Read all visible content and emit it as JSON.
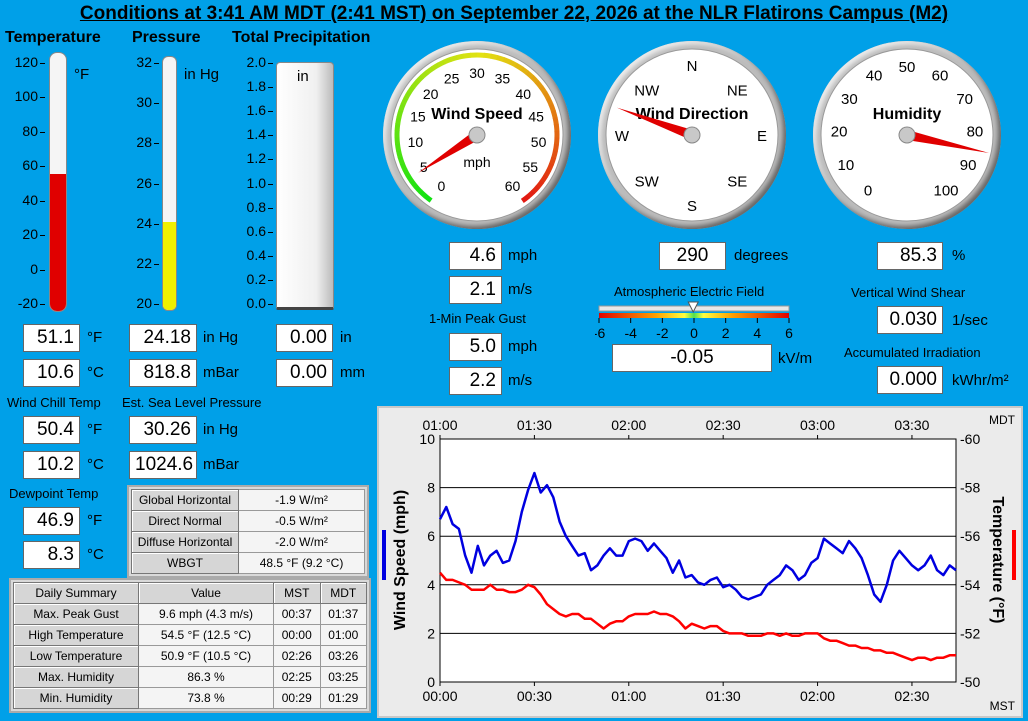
{
  "title": "Conditions at 3:41 AM MDT (2:41 MST) on September 22, 2026 at the NLR Flatirons Campus (M2)",
  "temperature": {
    "header": "Temperature",
    "scale_unit": "°F",
    "ticks": [
      "120",
      "100",
      "80",
      "60",
      "40",
      "20",
      "0",
      "-20"
    ],
    "level": 51.1,
    "min": -20,
    "max": 120,
    "value_f": "51.1",
    "unit_f": "°F",
    "value_c": "10.6",
    "unit_c": "°C"
  },
  "pressure": {
    "header": "Pressure",
    "scale_unit": "in Hg",
    "ticks": [
      "32",
      "30",
      "28",
      "26",
      "24",
      "22",
      "20"
    ],
    "level": 24.18,
    "min": 20,
    "max": 32,
    "value_inhg": "24.18",
    "unit_inhg": "in Hg",
    "value_mbar": "818.8",
    "unit_mbar": "mBar"
  },
  "precip": {
    "header": "Total Precipitation",
    "scale_unit": "in",
    "ticks": [
      "2.0",
      "1.8",
      "1.6",
      "1.4",
      "1.2",
      "1.0",
      "0.8",
      "0.6",
      "0.4",
      "0.2",
      "0.0"
    ],
    "level": 0.0,
    "value_in": "0.00",
    "unit_in": "in",
    "value_mm": "0.00",
    "unit_mm": "mm"
  },
  "wind_chill": {
    "label": "Wind Chill Temp",
    "value_f": "50.4",
    "unit_f": "°F",
    "value_c": "10.2",
    "unit_c": "°C"
  },
  "sea_level": {
    "label": "Est. Sea Level Pressure",
    "value_inhg": "30.26",
    "unit_inhg": "in Hg",
    "value_mbar": "1024.6",
    "unit_mbar": "mBar"
  },
  "dewpoint": {
    "label": "Dewpoint Temp",
    "value_f": "46.9",
    "unit_f": "°F",
    "value_c": "8.3",
    "unit_c": "°C"
  },
  "radiation": [
    {
      "label": "Global Horizontal",
      "value": "-1.9 W/m²"
    },
    {
      "label": "Direct Normal",
      "value": "-0.5 W/m²"
    },
    {
      "label": "Diffuse Horizontal",
      "value": "-2.0 W/m²"
    },
    {
      "label": "WBGT",
      "value": "48.5 °F (9.2 °C)"
    }
  ],
  "daily_summary": {
    "headers": [
      "Daily Summary",
      "Value",
      "MST",
      "MDT"
    ],
    "rows": [
      {
        "label": "Max. Peak Gust",
        "value": "9.6 mph (4.3 m/s)",
        "mst": "00:37",
        "mdt": "01:37"
      },
      {
        "label": "High Temperature",
        "value": "54.5 °F (12.5 °C)",
        "mst": "00:00",
        "mdt": "01:00"
      },
      {
        "label": "Low Temperature",
        "value": "50.9 °F (10.5 °C)",
        "mst": "02:26",
        "mdt": "03:26"
      },
      {
        "label": "Max. Humidity",
        "value": "86.3 %",
        "mst": "02:25",
        "mdt": "03:25"
      },
      {
        "label": "Min. Humidity",
        "value": "73.8 %",
        "mst": "00:29",
        "mdt": "01:29"
      }
    ]
  },
  "wind_speed": {
    "gauge_title": "Wind Speed",
    "gauge_unit": "mph",
    "gauge_labels": [
      "0",
      "5",
      "10",
      "15",
      "20",
      "25",
      "30",
      "35",
      "40",
      "45",
      "50",
      "55",
      "60"
    ],
    "needle_value": 4.6,
    "gauge_max": 60,
    "value_mph": "4.6",
    "unit_mph": "mph",
    "value_ms": "2.1",
    "unit_ms": "m/s",
    "peak_label": "1-Min Peak Gust",
    "peak_mph": "5.0",
    "peak_unit_mph": "mph",
    "peak_ms": "2.2",
    "peak_unit_ms": "m/s"
  },
  "wind_direction": {
    "gauge_title": "Wind Direction",
    "compass": [
      "N",
      "NE",
      "E",
      "SE",
      "S",
      "SW",
      "W",
      "NW"
    ],
    "needle_degrees": 290,
    "value": "290",
    "unit": "degrees"
  },
  "humidity": {
    "gauge_title": "Humidity",
    "gauge_labels": [
      "0",
      "10",
      "20",
      "30",
      "40",
      "50",
      "60",
      "70",
      "80",
      "90",
      "100"
    ],
    "needle_value": 85.3,
    "value": "85.3",
    "unit": "%"
  },
  "electric_field": {
    "label": "Atmospheric Electric Field",
    "ticks": [
      "-6",
      "-4",
      "-2",
      "0",
      "2",
      "4",
      "6"
    ],
    "indicator": -0.05,
    "value": "-0.05",
    "unit": "kV/m"
  },
  "wind_shear": {
    "label": "Vertical Wind Shear",
    "value": "0.030",
    "unit": "1/sec"
  },
  "irradiation": {
    "label": "Accumulated Irradiation",
    "value": "0.000",
    "unit": "kWhr/m²"
  },
  "colors": {
    "wind": "#0000e0",
    "temp": "#ff0000",
    "thermo_fill": "#e00000",
    "pressure_fill": "#f0f000",
    "background": "#00a0e8"
  },
  "chart_data": {
    "type": "line",
    "xlabel_top": "MDT",
    "xlabel_bottom": "MST",
    "x_top_ticks": [
      "01:00",
      "01:30",
      "02:00",
      "02:30",
      "03:00",
      "03:30"
    ],
    "x_bottom_ticks": [
      "00:00",
      "00:30",
      "01:00",
      "01:30",
      "02:00",
      "02:30"
    ],
    "x_range_minutes_mst": [
      0,
      164
    ],
    "y_left": {
      "label": "Wind Speed (mph)",
      "range": [
        0,
        10
      ],
      "ticks": [
        "10",
        "8",
        "6",
        "4",
        "2",
        "0"
      ]
    },
    "y_right": {
      "label": "Temperature (°F)",
      "range": [
        -50,
        -60
      ],
      "ticks": [
        "-60",
        "-58",
        "-56",
        "-54",
        "-52",
        "-50"
      ]
    },
    "grid": true,
    "series": [
      {
        "name": "Wind Speed (mph)",
        "axis": "left",
        "color": "#0000e0",
        "x": [
          0,
          2,
          4,
          6,
          8,
          10,
          12,
          14,
          16,
          18,
          20,
          22,
          24,
          26,
          28,
          30,
          32,
          34,
          36,
          38,
          40,
          42,
          44,
          46,
          48,
          50,
          52,
          54,
          56,
          58,
          60,
          62,
          64,
          66,
          68,
          70,
          72,
          74,
          76,
          78,
          80,
          82,
          84,
          86,
          88,
          90,
          92,
          94,
          96,
          98,
          100,
          102,
          104,
          106,
          108,
          110,
          112,
          114,
          116,
          118,
          120,
          122,
          124,
          126,
          128,
          130,
          132,
          134,
          136,
          138,
          140,
          142,
          144,
          146,
          148,
          150,
          152,
          154,
          156,
          158,
          160,
          162,
          164
        ],
        "y": [
          6.7,
          7.2,
          6.5,
          6.3,
          5.2,
          4.5,
          5.6,
          4.8,
          5.2,
          5.4,
          4.9,
          5.0,
          5.8,
          7.0,
          7.9,
          8.6,
          7.8,
          8.1,
          7.6,
          6.6,
          6.0,
          5.6,
          5.2,
          5.3,
          4.6,
          4.8,
          5.2,
          5.5,
          5.2,
          5.2,
          5.8,
          5.9,
          5.8,
          5.4,
          5.7,
          5.4,
          5.1,
          4.5,
          5.0,
          4.3,
          4.4,
          4.1,
          4.0,
          4.2,
          4.3,
          3.9,
          4.0,
          3.8,
          3.5,
          3.4,
          3.5,
          3.6,
          4.0,
          4.2,
          4.4,
          4.8,
          4.6,
          4.2,
          4.4,
          4.9,
          5.1,
          5.9,
          5.7,
          5.5,
          5.3,
          5.8,
          5.5,
          5.1,
          4.4,
          3.6,
          3.3,
          4.0,
          5.0,
          5.4,
          5.1,
          4.8,
          4.6,
          4.8,
          5.2,
          4.6,
          4.4,
          4.8,
          4.6
        ]
      },
      {
        "name": "Temperature (°F)",
        "axis": "right",
        "color": "#ff0000",
        "x": [
          0,
          2,
          4,
          6,
          8,
          10,
          12,
          14,
          16,
          18,
          20,
          22,
          24,
          26,
          28,
          30,
          32,
          34,
          36,
          38,
          40,
          42,
          44,
          46,
          48,
          50,
          52,
          54,
          56,
          58,
          60,
          62,
          64,
          66,
          68,
          70,
          72,
          74,
          76,
          78,
          80,
          82,
          84,
          86,
          88,
          90,
          92,
          94,
          96,
          98,
          100,
          102,
          104,
          106,
          108,
          110,
          112,
          114,
          116,
          118,
          120,
          122,
          124,
          126,
          128,
          130,
          132,
          134,
          136,
          138,
          140,
          142,
          144,
          146,
          148,
          150,
          152,
          154,
          156,
          158,
          160,
          162,
          164
        ],
        "y": [
          -54.5,
          -54.2,
          -54.2,
          -54.1,
          -54.0,
          -53.8,
          -53.8,
          -53.8,
          -54.0,
          -53.8,
          -53.8,
          -53.7,
          -53.7,
          -53.8,
          -54.0,
          -53.9,
          -53.6,
          -53.2,
          -53.0,
          -52.8,
          -52.7,
          -52.8,
          -52.8,
          -52.6,
          -52.6,
          -52.4,
          -52.2,
          -52.4,
          -52.5,
          -52.5,
          -52.7,
          -52.8,
          -52.8,
          -52.8,
          -52.9,
          -52.8,
          -52.8,
          -52.7,
          -52.5,
          -52.2,
          -52.4,
          -52.3,
          -52.2,
          -52.3,
          -52.3,
          -52.1,
          -52.0,
          -52.0,
          -52.0,
          -51.9,
          -51.9,
          -51.9,
          -52.0,
          -52.0,
          -51.9,
          -52.0,
          -51.9,
          -51.9,
          -52.0,
          -52.0,
          -52.0,
          -51.8,
          -51.7,
          -51.7,
          -51.6,
          -51.5,
          -51.5,
          -51.4,
          -51.4,
          -51.3,
          -51.3,
          -51.2,
          -51.2,
          -51.1,
          -51.0,
          -50.9,
          -51.0,
          -51.0,
          -50.9,
          -51.0,
          -51.0,
          -51.1,
          -51.1
        ]
      }
    ]
  }
}
